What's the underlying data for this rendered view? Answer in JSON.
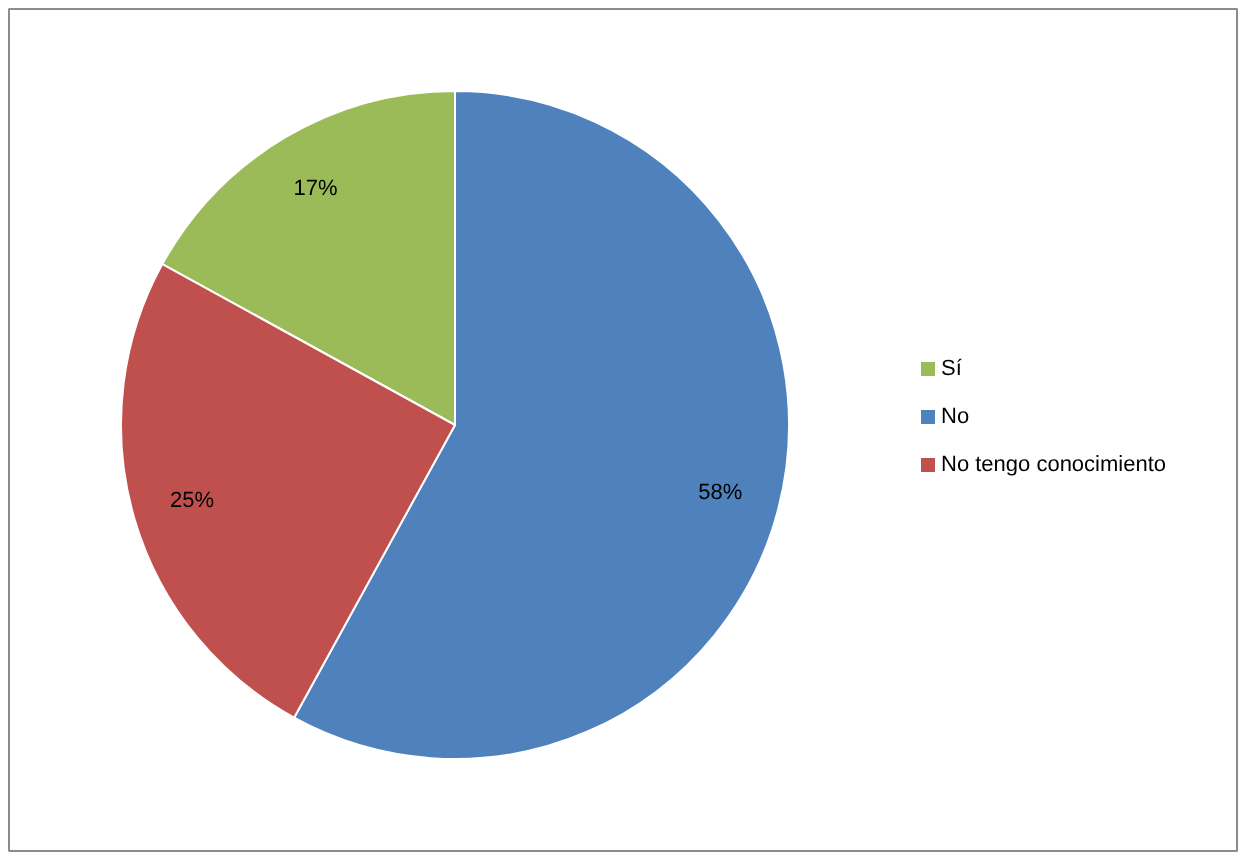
{
  "chart_data": {
    "type": "pie",
    "categories": [
      "Sí",
      "No",
      "No tengo conocimiento"
    ],
    "values": [
      17,
      58,
      25
    ],
    "colors": [
      "#9bbb59",
      "#4f81bd",
      "#c0504d"
    ],
    "value_labels": [
      "17%",
      "58%",
      "25%"
    ],
    "legend": "right"
  }
}
